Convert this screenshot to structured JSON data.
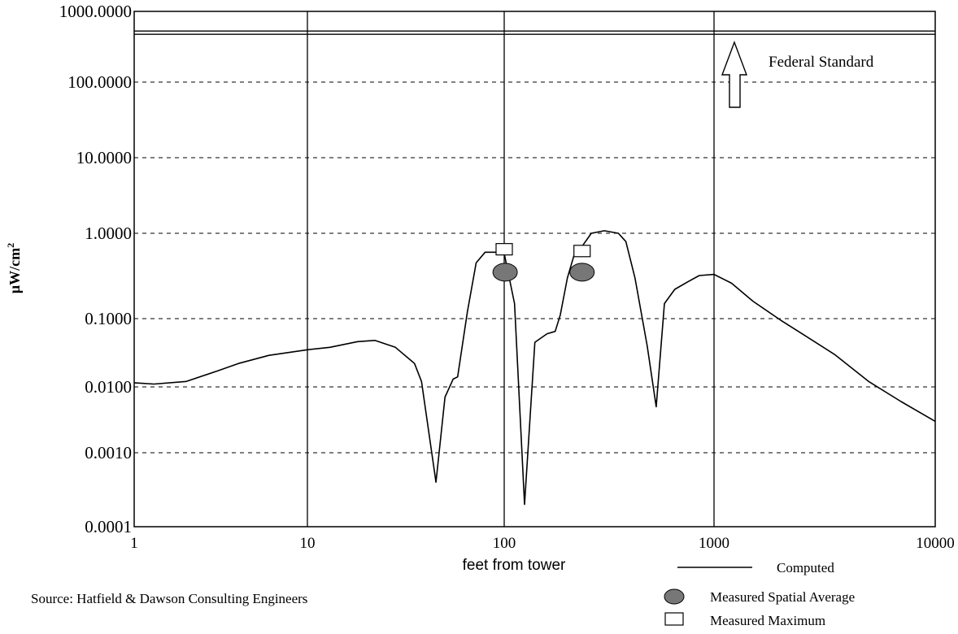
{
  "chart_data": {
    "type": "line",
    "xscale": "log",
    "yscale": "log",
    "xlim": [
      1,
      10000
    ],
    "ylim": [
      0.0001,
      1000
    ],
    "xlabel": "feet from tower",
    "ylabel": "μW/cm²",
    "ylabel_main": "μW/cm",
    "ylabel_sup": "2",
    "x_ticks": [
      1,
      10,
      100,
      1000,
      10000
    ],
    "x_tick_labels": [
      "1",
      "10",
      "100",
      "1000",
      "10000"
    ],
    "y_ticks": [
      0.0001,
      0.001,
      0.01,
      0.1,
      1,
      10,
      100,
      1000
    ],
    "y_tick_labels": [
      "0.0001",
      "0.0010",
      "0.0100",
      "0.1000",
      "1.0000",
      "10.0000",
      "100.0000",
      "1000.0000"
    ],
    "grid": "vertical solid at decades, horizontal dashed",
    "legend_placement": "bottom-right",
    "series": [
      {
        "name": "Computed",
        "style": "line",
        "x": [
          1,
          1.3,
          2,
          3,
          4,
          6,
          10,
          13,
          18,
          22,
          28,
          35,
          38,
          45,
          50,
          55,
          58,
          65,
          72,
          80,
          90,
          100,
          112,
          125,
          140,
          160,
          175,
          185,
          200,
          215,
          230,
          260,
          300,
          350,
          380,
          420,
          480,
          530,
          580,
          650,
          750,
          850,
          1000,
          1200,
          1500,
          2000,
          2500,
          3500,
          5000,
          7000,
          10000
        ],
        "y": [
          0.0115,
          0.011,
          0.012,
          0.017,
          0.022,
          0.029,
          0.035,
          0.038,
          0.046,
          0.048,
          0.038,
          0.022,
          0.012,
          0.0004,
          0.007,
          0.013,
          0.014,
          0.12,
          0.45,
          0.6,
          0.6,
          0.58,
          0.15,
          0.0002,
          0.045,
          0.06,
          0.065,
          0.11,
          0.3,
          0.55,
          0.65,
          1.0,
          1.08,
          1.0,
          0.8,
          0.3,
          0.04,
          0.005,
          0.15,
          0.22,
          0.27,
          0.32,
          0.33,
          0.26,
          0.16,
          0.095,
          0.06,
          0.03,
          0.012,
          0.006,
          0.003
        ]
      },
      {
        "name": "Measured Spatial Average",
        "style": "ellipse",
        "x": [
          101,
          235
        ],
        "y": [
          0.35,
          0.35
        ]
      },
      {
        "name": "Measured Maximum",
        "style": "square",
        "x": [
          100,
          235
        ],
        "y": [
          0.65,
          0.62
        ]
      }
    ],
    "reference_line": {
      "label": "Federal Standard",
      "value": 500
    },
    "annotations": [
      "Federal Standard"
    ]
  },
  "legend": {
    "items": [
      {
        "label": "Computed",
        "marker": "line"
      },
      {
        "label": "Measured Spatial Average",
        "marker": "ellipse"
      },
      {
        "label": "Measured Maximum",
        "marker": "square"
      }
    ]
  },
  "source": "Source:  Hatfield & Dawson Consulting Engineers",
  "colors": {
    "line": "#000000",
    "ellipse_fill": "#777777",
    "background": "#ffffff"
  }
}
